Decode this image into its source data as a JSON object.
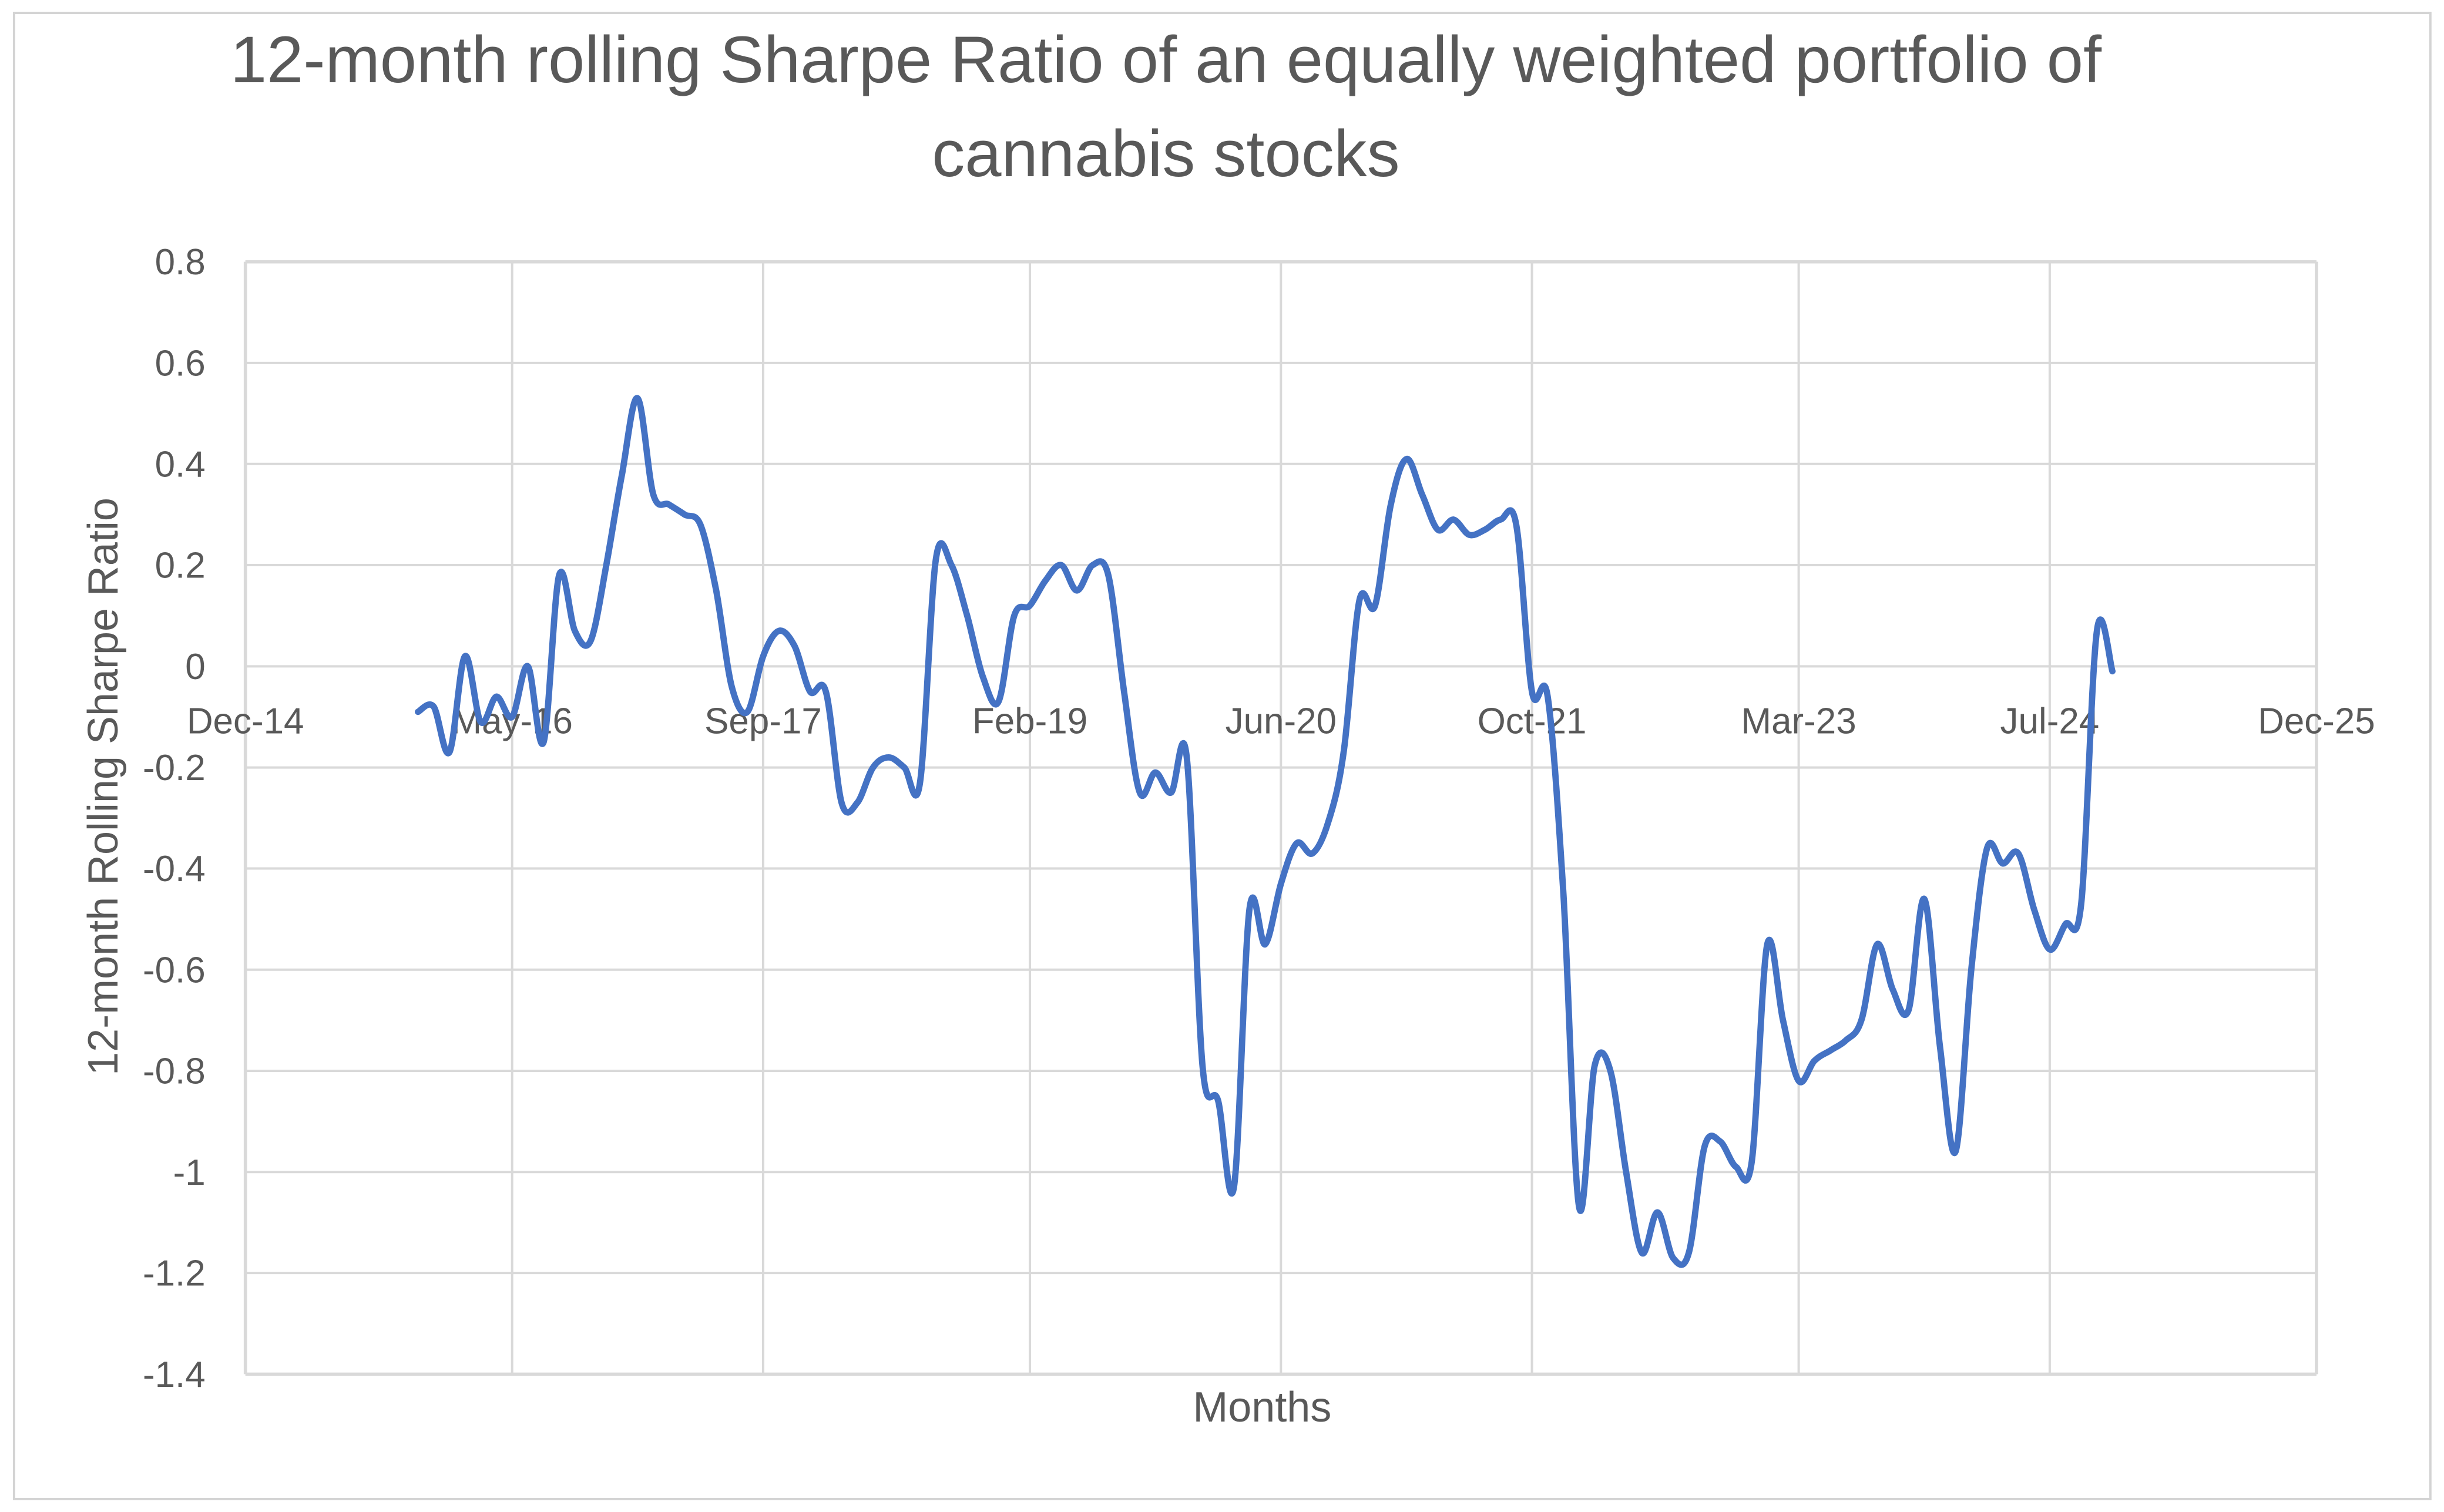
{
  "chart": {
    "title_line1": "12-month rolling Sharpe Ratio of an equally weighted portfolio of",
    "title_line2": "cannabis stocks",
    "x_axis_title": "Months",
    "y_axis_title": "12-month Rolling Sharpe Ratio",
    "colors": {
      "series": "#4472C4",
      "text": "#595959",
      "grid": "#D9D9D9",
      "border": "#D4D4D4",
      "background": "#FFFFFF"
    }
  },
  "chart_data": {
    "type": "line",
    "title": "12-month rolling Sharpe Ratio of an equally weighted portfolio of cannabis stocks",
    "xlabel": "Months",
    "ylabel": "12-month Rolling Sharpe Ratio",
    "ylim": [
      -1.4,
      0.8
    ],
    "y_tick_labels": [
      "0.8",
      "0.6",
      "0.4",
      "0.2",
      "0",
      "-0.2",
      "-0.4",
      "-0.6",
      "-0.8",
      "-1",
      "-1.2",
      "-1.4"
    ],
    "y_tick_values": [
      0.8,
      0.6,
      0.4,
      0.2,
      0,
      -0.2,
      -0.4,
      -0.6,
      -0.8,
      -1,
      -1.2,
      -1.4
    ],
    "x_range_months": [
      0,
      132
    ],
    "x_ticks": [
      {
        "label": "Dec-14",
        "month_index": 0
      },
      {
        "label": "May-16",
        "month_index": 17
      },
      {
        "label": "Sep-17",
        "month_index": 33
      },
      {
        "label": "Feb-19",
        "month_index": 50
      },
      {
        "label": "Jun-20",
        "month_index": 66
      },
      {
        "label": "Oct-21",
        "month_index": 82
      },
      {
        "label": "Mar-23",
        "month_index": 99
      },
      {
        "label": "Jul-24",
        "month_index": 115
      },
      {
        "label": "Dec-25",
        "month_index": 132
      }
    ],
    "grid": true,
    "legend": "none",
    "line_style": "smooth",
    "series": [
      {
        "name": "12-month rolling Sharpe Ratio",
        "color": "#4472C4",
        "frequency": "monthly",
        "start_month": "Nov-15",
        "start_month_index": 11,
        "values": [
          -0.09,
          -0.08,
          -0.17,
          0.02,
          -0.11,
          -0.06,
          -0.1,
          0.0,
          -0.15,
          0.18,
          0.07,
          0.05,
          0.2,
          0.38,
          0.53,
          0.34,
          0.32,
          0.3,
          0.28,
          0.15,
          -0.04,
          -0.09,
          0.02,
          0.07,
          0.04,
          -0.05,
          -0.05,
          -0.27,
          -0.27,
          -0.2,
          -0.18,
          -0.2,
          -0.23,
          0.21,
          0.2,
          0.1,
          -0.02,
          -0.07,
          0.1,
          0.12,
          0.17,
          0.2,
          0.15,
          0.2,
          0.18,
          -0.05,
          -0.25,
          -0.21,
          -0.25,
          -0.18,
          -0.79,
          -0.86,
          -1.03,
          -0.48,
          -0.55,
          -0.43,
          -0.35,
          -0.37,
          -0.31,
          -0.17,
          0.13,
          0.12,
          0.32,
          0.41,
          0.34,
          0.27,
          0.29,
          0.26,
          0.27,
          0.29,
          0.28,
          -0.05,
          -0.06,
          -0.45,
          -1.07,
          -0.79,
          -0.8,
          -1.0,
          -1.16,
          -1.08,
          -1.17,
          -1.16,
          -0.95,
          -0.94,
          -0.99,
          -0.98,
          -0.55,
          -0.7,
          -0.82,
          -0.78,
          -0.76,
          -0.74,
          -0.7,
          -0.55,
          -0.64,
          -0.68,
          -0.46,
          -0.75,
          -0.96,
          -0.6,
          -0.36,
          -0.39,
          -0.37,
          -0.48,
          -0.56,
          -0.51,
          -0.47,
          0.07,
          -0.01
        ]
      }
    ]
  }
}
